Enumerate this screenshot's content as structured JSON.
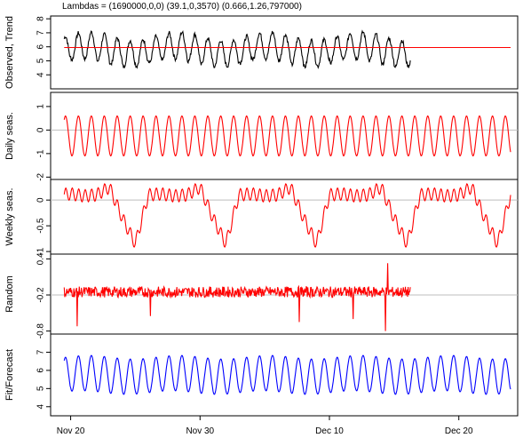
{
  "chart_data": {
    "type": "line",
    "title": "Lambdas = (1690000,0,0) (39.1,0,3570) (0.666,1.26,797000)",
    "x_range": [
      "2019-11-19",
      "2019-12-24"
    ],
    "x_ticks": [
      {
        "date": "2019-11-20",
        "label": "Nov 20"
      },
      {
        "date": "2019-11-30",
        "label": "Nov 30"
      },
      {
        "date": "2019-12-10",
        "label": "Dec 10"
      },
      {
        "date": "2019-12-20",
        "label": "Dec 20"
      }
    ],
    "panels": [
      {
        "id": "observed",
        "ylabel": "Observed, Trend",
        "ylim": [
          3,
          8.2
        ],
        "yticks": [
          4,
          5,
          6,
          7,
          8
        ],
        "ref_line": null,
        "series": [
          {
            "role": "observed",
            "color": "#000000",
            "start": "2019-11-19T12:00",
            "end": "2019-12-16T06:00",
            "mean": 5.8,
            "daily_amp": 1.9,
            "weekly_amp": 0.3,
            "noise": 0.15
          },
          {
            "role": "trend",
            "color": "#ff0000",
            "start": "2019-11-19T12:00",
            "end": "2019-12-24T00:00",
            "constant": 5.95
          }
        ]
      },
      {
        "id": "daily",
        "ylabel": "Daily seas.",
        "ylim": [
          -2.1,
          1.6
        ],
        "yticks": [
          -2,
          -1,
          0,
          1
        ],
        "ref_line": 0,
        "series": [
          {
            "role": "daily",
            "color": "#ff0000",
            "start": "2019-11-19T12:00",
            "end": "2019-12-24T00:00",
            "mean": -0.25,
            "daily_amp": 1.7,
            "weekly_amp": 0,
            "noise": 0
          }
        ]
      },
      {
        "id": "weekly",
        "ylabel": "Weekly seas.",
        "ylim": [
          -1.05,
          0.4
        ],
        "yticks": [
          -1.0,
          -0.5,
          0.0
        ],
        "ref_line": 0,
        "series": [
          {
            "role": "weekly",
            "color": "#ff0000",
            "start": "2019-11-19T12:00",
            "end": "2019-12-24T00:00",
            "weekly_profile": [
              0.1,
              0.12,
              0.08,
              0.1,
              0.25,
              -0.35,
              -0.85,
              0.1
            ],
            "wiggle_amp": 0.12
          }
        ]
      },
      {
        "id": "random",
        "ylabel": "Random",
        "ylim": [
          -0.85,
          0.48
        ],
        "yticks": [
          -0.8,
          -0.2,
          0.4
        ],
        "ref_line": -0.2,
        "series": [
          {
            "role": "random",
            "color": "#ff0000",
            "start": "2019-11-19T12:00",
            "end": "2019-12-16T06:00",
            "mean": -0.15,
            "noise": 0.09,
            "spikes": [
              {
                "date": "2019-11-20T12:00",
                "value": -0.72
              },
              {
                "date": "2019-11-26T04:00",
                "value": -0.55
              },
              {
                "date": "2019-12-07T16:00",
                "value": -0.65
              },
              {
                "date": "2019-12-11T20:00",
                "value": -0.6
              },
              {
                "date": "2019-12-14T08:00",
                "value": -0.8
              },
              {
                "date": "2019-12-14T12:00",
                "value": 0.33
              }
            ]
          }
        ]
      },
      {
        "id": "fit",
        "ylabel": "Fit/Forecast",
        "ylim": [
          3.5,
          8.0
        ],
        "yticks": [
          4,
          5,
          6,
          7
        ],
        "ref_line": null,
        "series": [
          {
            "role": "fit_forecast",
            "color": "#0000ff",
            "start": "2019-11-19T12:00",
            "end": "2019-12-24T00:00",
            "mean": 5.75,
            "daily_amp": 1.95,
            "weekly_amp": 0.1,
            "noise": 0
          }
        ]
      }
    ]
  }
}
